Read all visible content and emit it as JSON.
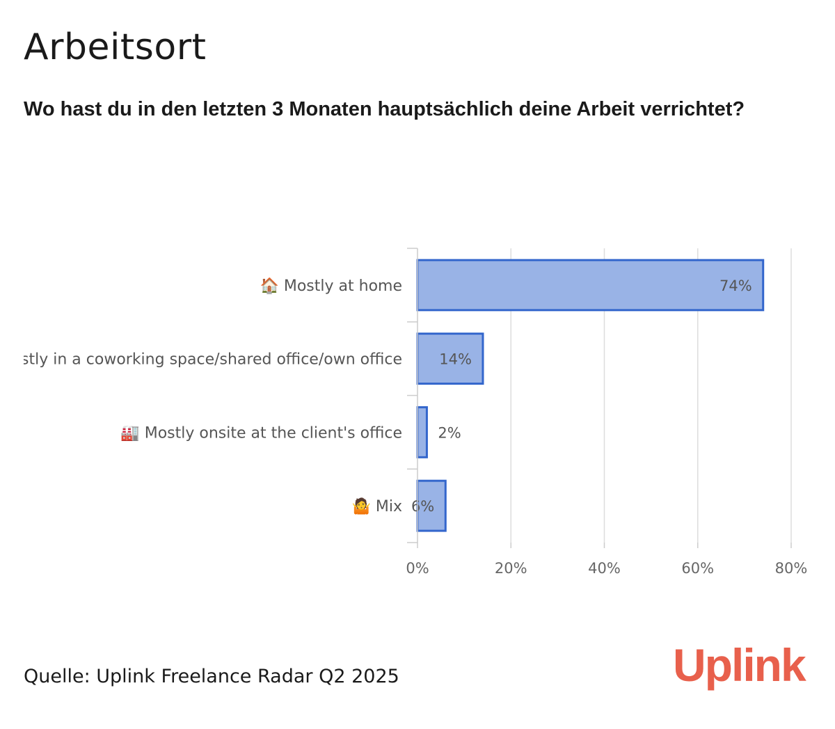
{
  "header": {
    "title": "Arbeitsort",
    "subtitle": "Wo hast du in den letzten 3 Monaten hauptsächlich deine Arbeit verrichtet?"
  },
  "footer": {
    "source": "Quelle: Uplink Freelance Radar Q2 2025",
    "logo_text": "Uplink"
  },
  "colors": {
    "bar_fill": "#99b3e6",
    "bar_stroke": "#3366cc",
    "logo": "#e8604c"
  },
  "chart_data": {
    "type": "bar",
    "orientation": "horizontal",
    "categories": [
      "🏠 Mostly at home",
      "🏢 Mostly in a coworking space/shared office/own office",
      "🏭 Mostly onsite at the client's office",
      "🤷 Mix"
    ],
    "values": [
      74,
      14,
      2,
      6
    ],
    "data_labels": [
      "74%",
      "14%",
      "2%",
      "6%"
    ],
    "xlim": [
      0,
      80
    ],
    "x_ticks": [
      0,
      20,
      40,
      60,
      80
    ],
    "x_tick_labels": [
      "0%",
      "20%",
      "40%",
      "60%",
      "80%"
    ],
    "grid": true,
    "legend": "none"
  }
}
